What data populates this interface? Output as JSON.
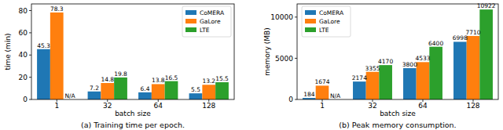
{
  "chart_data": [
    {
      "type": "bar",
      "title": "(a) Training time per epoch.",
      "x_label": "batch size",
      "y_label": "time (min)",
      "categories": [
        "1",
        "32",
        "64",
        "128"
      ],
      "series": [
        {
          "name": "CoMERA",
          "color": "#1f77b4",
          "values": [
            45.3,
            7.2,
            6.4,
            5.5
          ]
        },
        {
          "name": "GaLore",
          "color": "#ff7f0e",
          "values": [
            78.3,
            14.8,
            13.8,
            13.2
          ]
        },
        {
          "name": "LTE",
          "color": "#2ca02c",
          "values": [
            null,
            19.8,
            16.5,
            15.5
          ],
          "value_labels": [
            "N/A",
            "19.8",
            "16.5",
            "15.5"
          ]
        }
      ],
      "ylim": [
        0,
        86
      ],
      "yticks": [
        0,
        20,
        40,
        60,
        80
      ],
      "grid": false,
      "legend": "upper right",
      "data_labels": true
    },
    {
      "type": "bar",
      "title": "(b) Peak memory consumption.",
      "x_label": "batch size",
      "y_label": "memory (MB)",
      "categories": [
        "1",
        "32",
        "64",
        "128"
      ],
      "series": [
        {
          "name": "CoMERA",
          "color": "#1f77b4",
          "values": [
            184,
            2174,
            3800,
            6998
          ]
        },
        {
          "name": "GaLore",
          "color": "#ff7f0e",
          "values": [
            1674,
            3355,
            4533,
            7710
          ]
        },
        {
          "name": "LTE",
          "color": "#2ca02c",
          "values": [
            null,
            4170,
            6400,
            10922
          ],
          "value_labels": [
            "N/A",
            "4170",
            "6400",
            "10922"
          ]
        }
      ],
      "ylim": [
        0,
        11600
      ],
      "yticks": [
        0,
        5000,
        10000
      ],
      "grid": false,
      "legend": "upper left",
      "data_labels": true
    }
  ]
}
